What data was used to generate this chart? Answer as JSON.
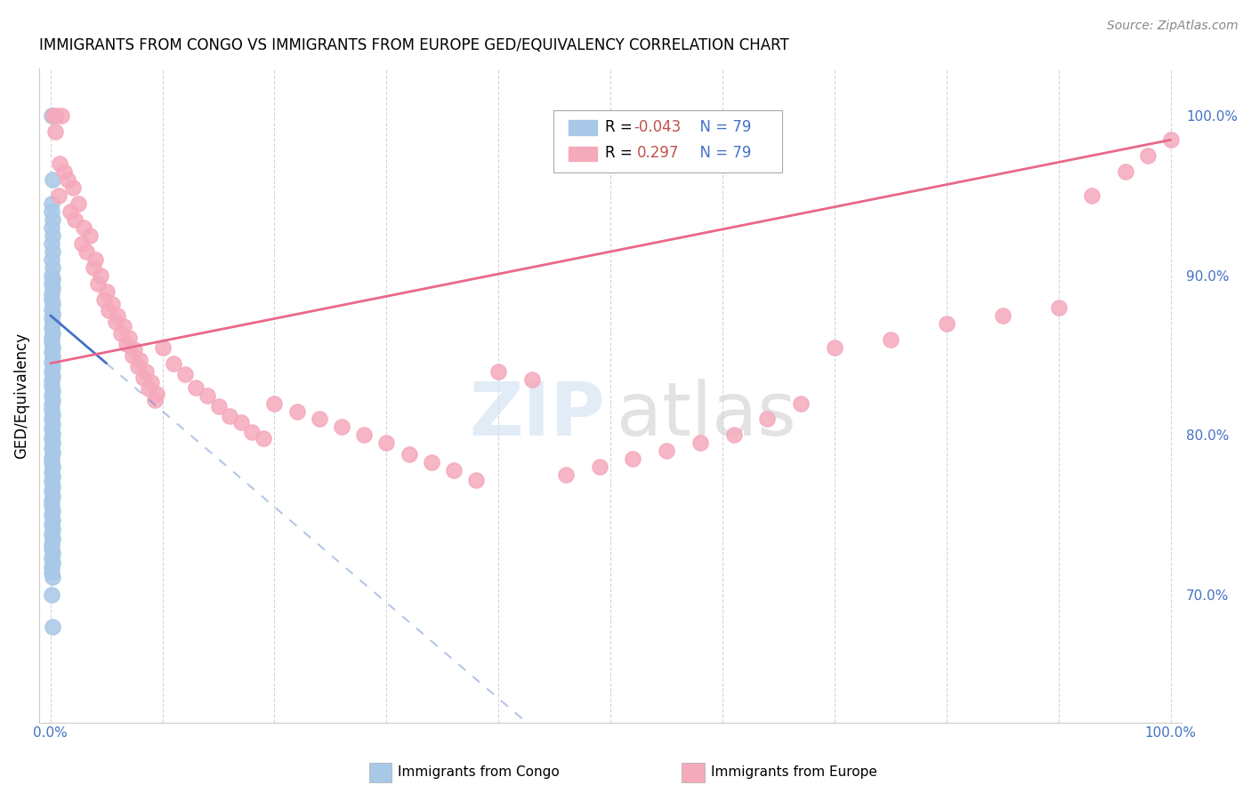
{
  "title": "IMMIGRANTS FROM CONGO VS IMMIGRANTS FROM EUROPE GED/EQUIVALENCY CORRELATION CHART",
  "source": "Source: ZipAtlas.com",
  "ylabel": "GED/Equivalency",
  "right_yticks": [
    "100.0%",
    "90.0%",
    "80.0%",
    "70.0%"
  ],
  "right_ytick_vals": [
    1.0,
    0.9,
    0.8,
    0.7
  ],
  "ylim_min": 0.62,
  "ylim_max": 1.03,
  "xlim_min": -0.01,
  "xlim_max": 1.01,
  "congo_R": -0.043,
  "europe_R": 0.297,
  "N": 79,
  "congo_color": "#a8c8e8",
  "europe_color": "#f5aabc",
  "congo_line_color": "#4472C4",
  "europe_line_color": "#E8688A",
  "congo_line_solid_end": 0.05,
  "congo_line_start_y": 0.875,
  "congo_line_end_y": 0.845,
  "congo_line_dash_end_y": 0.645,
  "europe_line_start_y": 0.845,
  "europe_line_end_y": 0.985,
  "legend_label_congo": "Immigrants from Congo",
  "legend_label_europe": "Immigrants from Europe",
  "legend_R_congo_color": "#C0504D",
  "legend_R_europe_color": "#C0504D",
  "legend_N_color": "#4472C4",
  "watermark_zip_color": "#cde0f0",
  "watermark_atlas_color": "#d0d0d0",
  "grid_color": "#cccccc",
  "congo_points_x": [
    0.001,
    0.002,
    0.003,
    0.002,
    0.001,
    0.001,
    0.002,
    0.001,
    0.002,
    0.001,
    0.002,
    0.001,
    0.002,
    0.001,
    0.002,
    0.001,
    0.002,
    0.001,
    0.001,
    0.002,
    0.001,
    0.002,
    0.001,
    0.002,
    0.001,
    0.002,
    0.001,
    0.001,
    0.002,
    0.001,
    0.002,
    0.001,
    0.002,
    0.001,
    0.002,
    0.001,
    0.001,
    0.002,
    0.001,
    0.002,
    0.001,
    0.001,
    0.002,
    0.001,
    0.002,
    0.001,
    0.002,
    0.001,
    0.002,
    0.001,
    0.002,
    0.001,
    0.001,
    0.002,
    0.001,
    0.002,
    0.001,
    0.002,
    0.001,
    0.002,
    0.001,
    0.001,
    0.002,
    0.001,
    0.002,
    0.001,
    0.002,
    0.001,
    0.002,
    0.001,
    0.001,
    0.002,
    0.001,
    0.002,
    0.001,
    0.001,
    0.002,
    0.001,
    0.002
  ],
  "congo_points_y": [
    1.0,
    1.0,
    1.0,
    0.96,
    0.945,
    0.94,
    0.935,
    0.93,
    0.925,
    0.92,
    0.915,
    0.91,
    0.905,
    0.9,
    0.898,
    0.895,
    0.892,
    0.888,
    0.885,
    0.882,
    0.879,
    0.876,
    0.873,
    0.87,
    0.867,
    0.864,
    0.861,
    0.858,
    0.855,
    0.852,
    0.849,
    0.846,
    0.843,
    0.84,
    0.837,
    0.834,
    0.831,
    0.828,
    0.825,
    0.822,
    0.819,
    0.816,
    0.813,
    0.81,
    0.807,
    0.804,
    0.801,
    0.798,
    0.795,
    0.792,
    0.789,
    0.786,
    0.783,
    0.78,
    0.777,
    0.774,
    0.771,
    0.768,
    0.765,
    0.762,
    0.759,
    0.756,
    0.753,
    0.75,
    0.747,
    0.744,
    0.741,
    0.738,
    0.735,
    0.732,
    0.729,
    0.726,
    0.723,
    0.72,
    0.717,
    0.714,
    0.711,
    0.7,
    0.68
  ],
  "europe_points_x": [
    0.003,
    0.005,
    0.004,
    0.01,
    0.008,
    0.012,
    0.015,
    0.007,
    0.02,
    0.018,
    0.025,
    0.022,
    0.03,
    0.028,
    0.035,
    0.032,
    0.04,
    0.038,
    0.045,
    0.042,
    0.05,
    0.048,
    0.055,
    0.052,
    0.06,
    0.058,
    0.065,
    0.063,
    0.07,
    0.068,
    0.075,
    0.073,
    0.08,
    0.078,
    0.085,
    0.083,
    0.09,
    0.088,
    0.095,
    0.093,
    0.1,
    0.11,
    0.12,
    0.13,
    0.14,
    0.15,
    0.16,
    0.17,
    0.18,
    0.19,
    0.2,
    0.22,
    0.24,
    0.26,
    0.28,
    0.3,
    0.32,
    0.34,
    0.36,
    0.38,
    0.4,
    0.43,
    0.46,
    0.49,
    0.52,
    0.55,
    0.58,
    0.61,
    0.64,
    0.67,
    0.7,
    0.75,
    0.8,
    0.85,
    0.9,
    0.93,
    0.96,
    0.98,
    1.0
  ],
  "europe_points_y": [
    1.0,
    1.0,
    0.99,
    1.0,
    0.97,
    0.965,
    0.96,
    0.95,
    0.955,
    0.94,
    0.945,
    0.935,
    0.93,
    0.92,
    0.925,
    0.915,
    0.91,
    0.905,
    0.9,
    0.895,
    0.89,
    0.885,
    0.882,
    0.878,
    0.875,
    0.871,
    0.868,
    0.864,
    0.861,
    0.857,
    0.854,
    0.85,
    0.847,
    0.843,
    0.84,
    0.836,
    0.833,
    0.829,
    0.826,
    0.822,
    0.855,
    0.845,
    0.838,
    0.83,
    0.825,
    0.818,
    0.812,
    0.808,
    0.802,
    0.798,
    0.82,
    0.815,
    0.81,
    0.805,
    0.8,
    0.795,
    0.788,
    0.783,
    0.778,
    0.772,
    0.84,
    0.835,
    0.775,
    0.78,
    0.785,
    0.79,
    0.795,
    0.8,
    0.81,
    0.82,
    0.855,
    0.86,
    0.87,
    0.875,
    0.88,
    0.95,
    0.965,
    0.975,
    0.985
  ]
}
